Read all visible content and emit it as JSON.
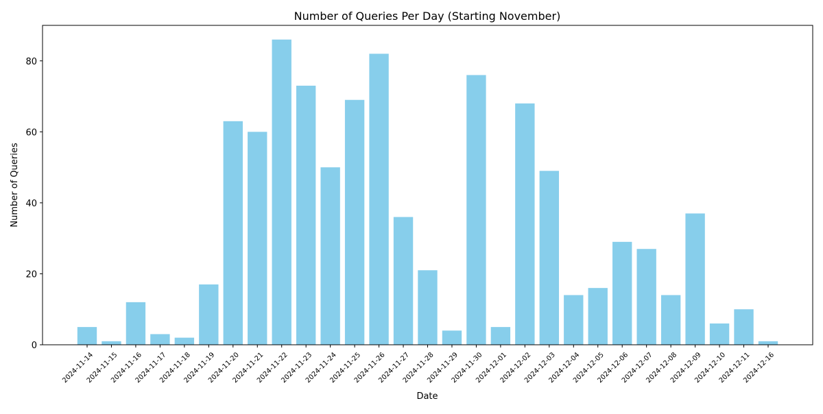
{
  "chart_data": {
    "type": "bar",
    "title": "Number of Queries Per Day (Starting November)",
    "xlabel": "Date",
    "ylabel": "Number of Queries",
    "categories": [
      "2024-11-14",
      "2024-11-15",
      "2024-11-16",
      "2024-11-17",
      "2024-11-18",
      "2024-11-19",
      "2024-11-20",
      "2024-11-21",
      "2024-11-22",
      "2024-11-23",
      "2024-11-24",
      "2024-11-25",
      "2024-11-26",
      "2024-11-27",
      "2024-11-28",
      "2024-11-29",
      "2024-11-30",
      "2024-12-01",
      "2024-12-02",
      "2024-12-03",
      "2024-12-04",
      "2024-12-05",
      "2024-12-06",
      "2024-12-07",
      "2024-12-08",
      "2024-12-09",
      "2024-12-10",
      "2024-12-11",
      "2024-12-16"
    ],
    "values": [
      5,
      1,
      12,
      3,
      2,
      17,
      63,
      60,
      86,
      73,
      50,
      69,
      82,
      36,
      21,
      4,
      76,
      5,
      68,
      49,
      14,
      16,
      29,
      27,
      14,
      37,
      6,
      10,
      1
    ],
    "ylim": [
      0,
      90
    ],
    "yticks": [
      0,
      20,
      40,
      60,
      80
    ],
    "bar_color": "#87CEEB",
    "grid": false,
    "legend": "none"
  }
}
